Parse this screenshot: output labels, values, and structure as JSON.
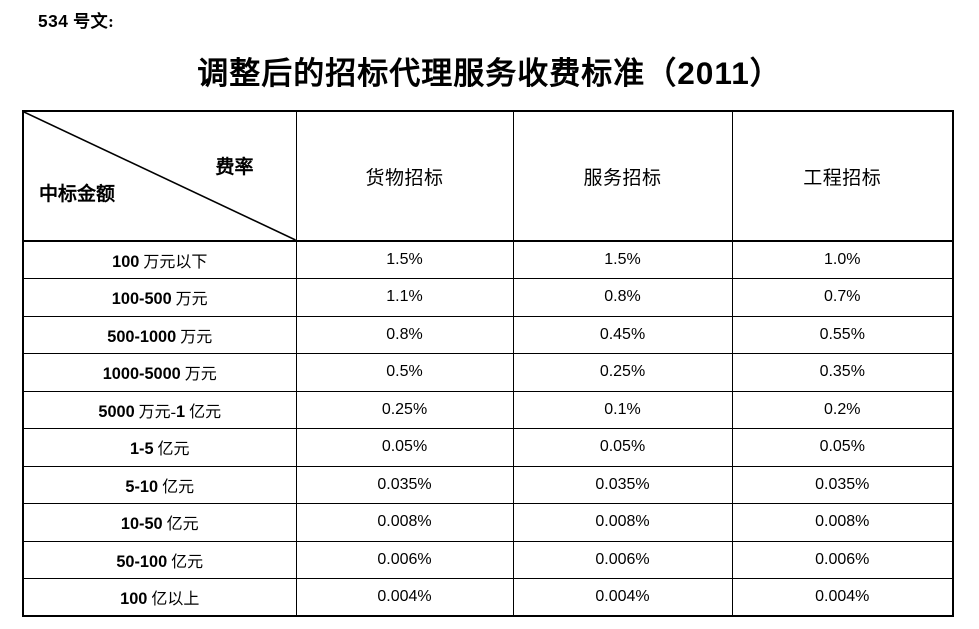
{
  "page": {
    "doc_ref": "534 号文:",
    "title": "调整后的招标代理服务收费标准（2011）"
  },
  "table": {
    "corner": {
      "top_right": "费率",
      "bottom_left": "中标金额"
    },
    "columns": [
      "货物招标",
      "服务招标",
      "工程招标"
    ],
    "rows": [
      {
        "label": "100 万元以下",
        "values": [
          "1.5%",
          "1.5%",
          "1.0%"
        ]
      },
      {
        "label": "100-500 万元",
        "values": [
          "1.1%",
          "0.8%",
          "0.7%"
        ]
      },
      {
        "label": "500-1000 万元",
        "values": [
          "0.8%",
          "0.45%",
          "0.55%"
        ]
      },
      {
        "label": "1000-5000 万元",
        "values": [
          "0.5%",
          "0.25%",
          "0.35%"
        ]
      },
      {
        "label": "5000 万元-1 亿元",
        "values": [
          "0.25%",
          "0.1%",
          "0.2%"
        ]
      },
      {
        "label": "1-5 亿元",
        "values": [
          "0.05%",
          "0.05%",
          "0.05%"
        ]
      },
      {
        "label": "5-10 亿元",
        "values": [
          "0.035%",
          "0.035%",
          "0.035%"
        ]
      },
      {
        "label": "10-50 亿元",
        "values": [
          "0.008%",
          "0.008%",
          "0.008%"
        ]
      },
      {
        "label": "50-100 亿元",
        "values": [
          "0.006%",
          "0.006%",
          "0.006%"
        ]
      },
      {
        "label": "100 亿以上",
        "values": [
          "0.004%",
          "0.004%",
          "0.004%"
        ]
      }
    ]
  }
}
